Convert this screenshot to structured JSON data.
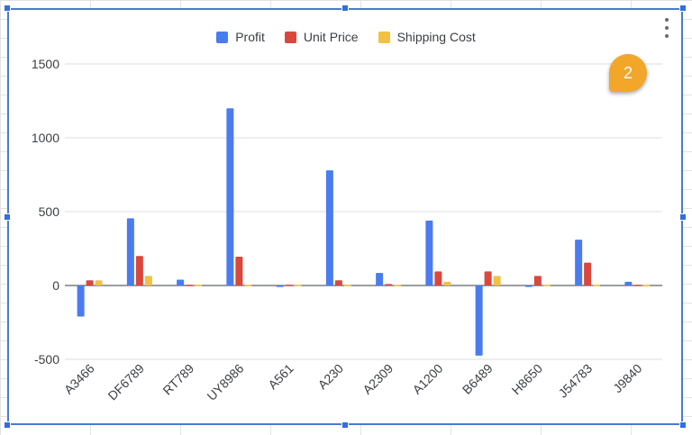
{
  "chart_data": {
    "type": "bar",
    "title": "",
    "xlabel": "",
    "ylabel": "",
    "categories": [
      "A3466",
      "DF6789",
      "RT789",
      "UY8986",
      "A561",
      "A230",
      "A2309",
      "A1200",
      "B6489",
      "H8650",
      "J54783",
      "J9840"
    ],
    "series": [
      {
        "name": "Profit",
        "color": "#4a7cf0",
        "values": [
          -210,
          455,
          40,
          1200,
          -10,
          780,
          85,
          440,
          -475,
          -10,
          310,
          25
        ]
      },
      {
        "name": "Unit Price",
        "color": "#d9473d",
        "values": [
          35,
          200,
          5,
          195,
          5,
          35,
          10,
          95,
          95,
          65,
          155,
          5
        ]
      },
      {
        "name": "Shipping Cost",
        "color": "#f1c143",
        "values": [
          35,
          65,
          5,
          5,
          5,
          5,
          3,
          25,
          65,
          5,
          5,
          3
        ]
      }
    ],
    "ylim": [
      -500,
      1500
    ],
    "yticks": [
      -500,
      0,
      500,
      1000,
      1500
    ],
    "grid": true,
    "legend_position": "top"
  },
  "ui": {
    "badge_number": "2"
  }
}
